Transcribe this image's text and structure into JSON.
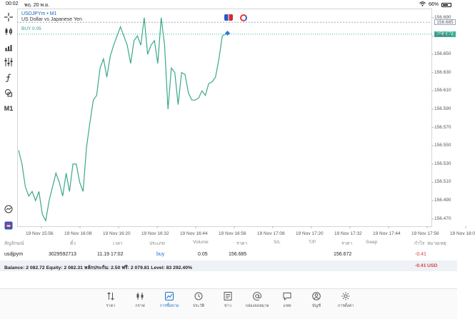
{
  "status_bar": {
    "time": "00:02",
    "date": "พฤ. 20 พ.ย.",
    "battery": "66%",
    "battery_level": 0.66
  },
  "chart": {
    "symbol_title": "USDJPYm • M1",
    "symbol_desc": "US Dollar vs Japanese Yen",
    "buy_label": "BUY 0.05",
    "timeframe": "M1",
    "price_open_tag": "156.685",
    "price_current_tag": "156.672",
    "colors": {
      "line": "#3aa88a",
      "open_line": "#9aa8b8",
      "current_line": "#37b39a",
      "current_tag_bg": "#37b39a"
    },
    "y_ticks": [
      "156.690",
      "156.670",
      "156.650",
      "156.630",
      "156.610",
      "156.590",
      "156.570",
      "156.550",
      "156.530",
      "156.510",
      "156.490",
      "156.470"
    ],
    "x_ticks": [
      "19 Nov 15:56",
      "19 Nov 16:08",
      "19 Nov 16:20",
      "19 Nov 16:32",
      "19 Nov 16:44",
      "19 Nov 16:56",
      "19 Nov 17:08",
      "19 Nov 17:20",
      "19 Nov 17:32",
      "19 Nov 17:44",
      "19 Nov 17:56",
      "19 Nov 18:0"
    ]
  },
  "chart_data": {
    "type": "line",
    "ylim": [
      156.462,
      156.7
    ],
    "series": [
      {
        "values": [
          156.545,
          156.53,
          156.505,
          156.495,
          156.5,
          156.49,
          156.5,
          156.475,
          156.468,
          156.49,
          156.505,
          156.52,
          156.51,
          156.495,
          156.52,
          156.5,
          156.53,
          156.53,
          156.51,
          156.5,
          156.548,
          156.575,
          156.6,
          156.605,
          156.635,
          156.645,
          156.625,
          156.648,
          156.66,
          156.67,
          156.68,
          156.67,
          156.66,
          156.64,
          156.665,
          156.67,
          156.66,
          156.69,
          156.65,
          156.66,
          156.665,
          156.64,
          156.69,
          156.66,
          156.59,
          156.635,
          156.63,
          156.595,
          156.63,
          156.628,
          156.608,
          156.6,
          156.6,
          156.602,
          156.61,
          156.605,
          156.618,
          156.62,
          156.625,
          156.645,
          156.67,
          156.672
        ]
      }
    ]
  },
  "toolbar": {
    "items": [
      "crosshair-icon",
      "candles-icon",
      "indicators-icon",
      "settings-lines-icon",
      "function-icon",
      "shapes-icon",
      "timeframe-M1"
    ],
    "bottom_items": [
      "clock-icon",
      "app-logo-icon"
    ]
  },
  "positions": {
    "headers": [
      "สัญลักษณ์",
      "ตั๋ว",
      "เวลา",
      "ประเภท",
      "Volume",
      "ราคา",
      "S/L",
      "T/P",
      "ราคา",
      "Swap",
      "กำไร",
      "หมายเหตุ"
    ],
    "rows": [
      {
        "symbol": "usdjpym",
        "ticket": "3029592713",
        "time": "11.19 17:02",
        "type": "buy",
        "volume": "0.05",
        "price": "156.685",
        "sl": "",
        "tp": "",
        "current": "156.672",
        "swap": "",
        "profit": "-0.41",
        "comment": ""
      }
    ]
  },
  "balance": {
    "text": "Balance: 2 082.72 Equity: 2 082.31 หลักประกัน: 2.50 ฟรี: 2 079.81 Level: 83 292.40%",
    "profit": "-0.41",
    "currency": "USD"
  },
  "bottom_nav": {
    "items": [
      {
        "label": "ราคา",
        "icon": "quotes-icon",
        "active": false
      },
      {
        "label": "กราฟ",
        "icon": "chart-icon",
        "active": false
      },
      {
        "label": "การซื้อขาย",
        "icon": "trade-icon",
        "active": true
      },
      {
        "label": "ประวัติ",
        "icon": "history-icon",
        "active": false
      },
      {
        "label": "ข่าว",
        "icon": "news-icon",
        "active": false
      },
      {
        "label": "กล่องจดหมาย",
        "icon": "mailbox-icon",
        "active": false
      },
      {
        "label": "แชท",
        "icon": "chat-icon",
        "active": false
      },
      {
        "label": "บัญชี",
        "icon": "account-icon",
        "active": false
      },
      {
        "label": "การตั้งค่า",
        "icon": "settings-icon",
        "active": false
      }
    ]
  }
}
